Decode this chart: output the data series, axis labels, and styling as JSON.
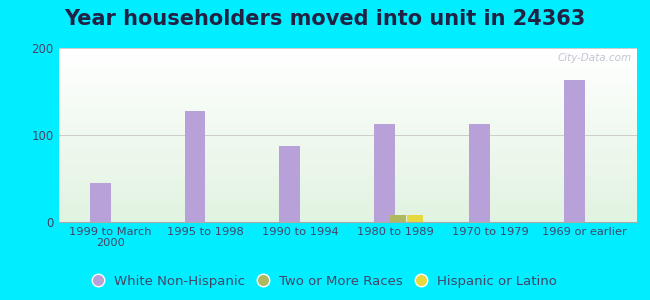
{
  "title": "Year householders moved into unit in 24363",
  "categories": [
    "1999 to March\n2000",
    "1995 to 1998",
    "1990 to 1994",
    "1980 to 1989",
    "1970 to 1979",
    "1969 or earlier"
  ],
  "white_non_hispanic": [
    45,
    128,
    87,
    113,
    113,
    163
  ],
  "two_or_more_races": [
    0,
    0,
    0,
    8,
    0,
    0
  ],
  "hispanic_or_latino": [
    0,
    0,
    0,
    8,
    0,
    0
  ],
  "bar_width": 0.22,
  "white_color": "#b8a0d8",
  "two_races_color": "#b0b860",
  "hispanic_color": "#e8d840",
  "ylim": [
    0,
    200
  ],
  "yticks": [
    0,
    100,
    200
  ],
  "outer_bg": "#00eeff",
  "watermark": "City-Data.com",
  "title_fontsize": 15,
  "legend_fontsize": 9.5,
  "title_color": "#222244"
}
